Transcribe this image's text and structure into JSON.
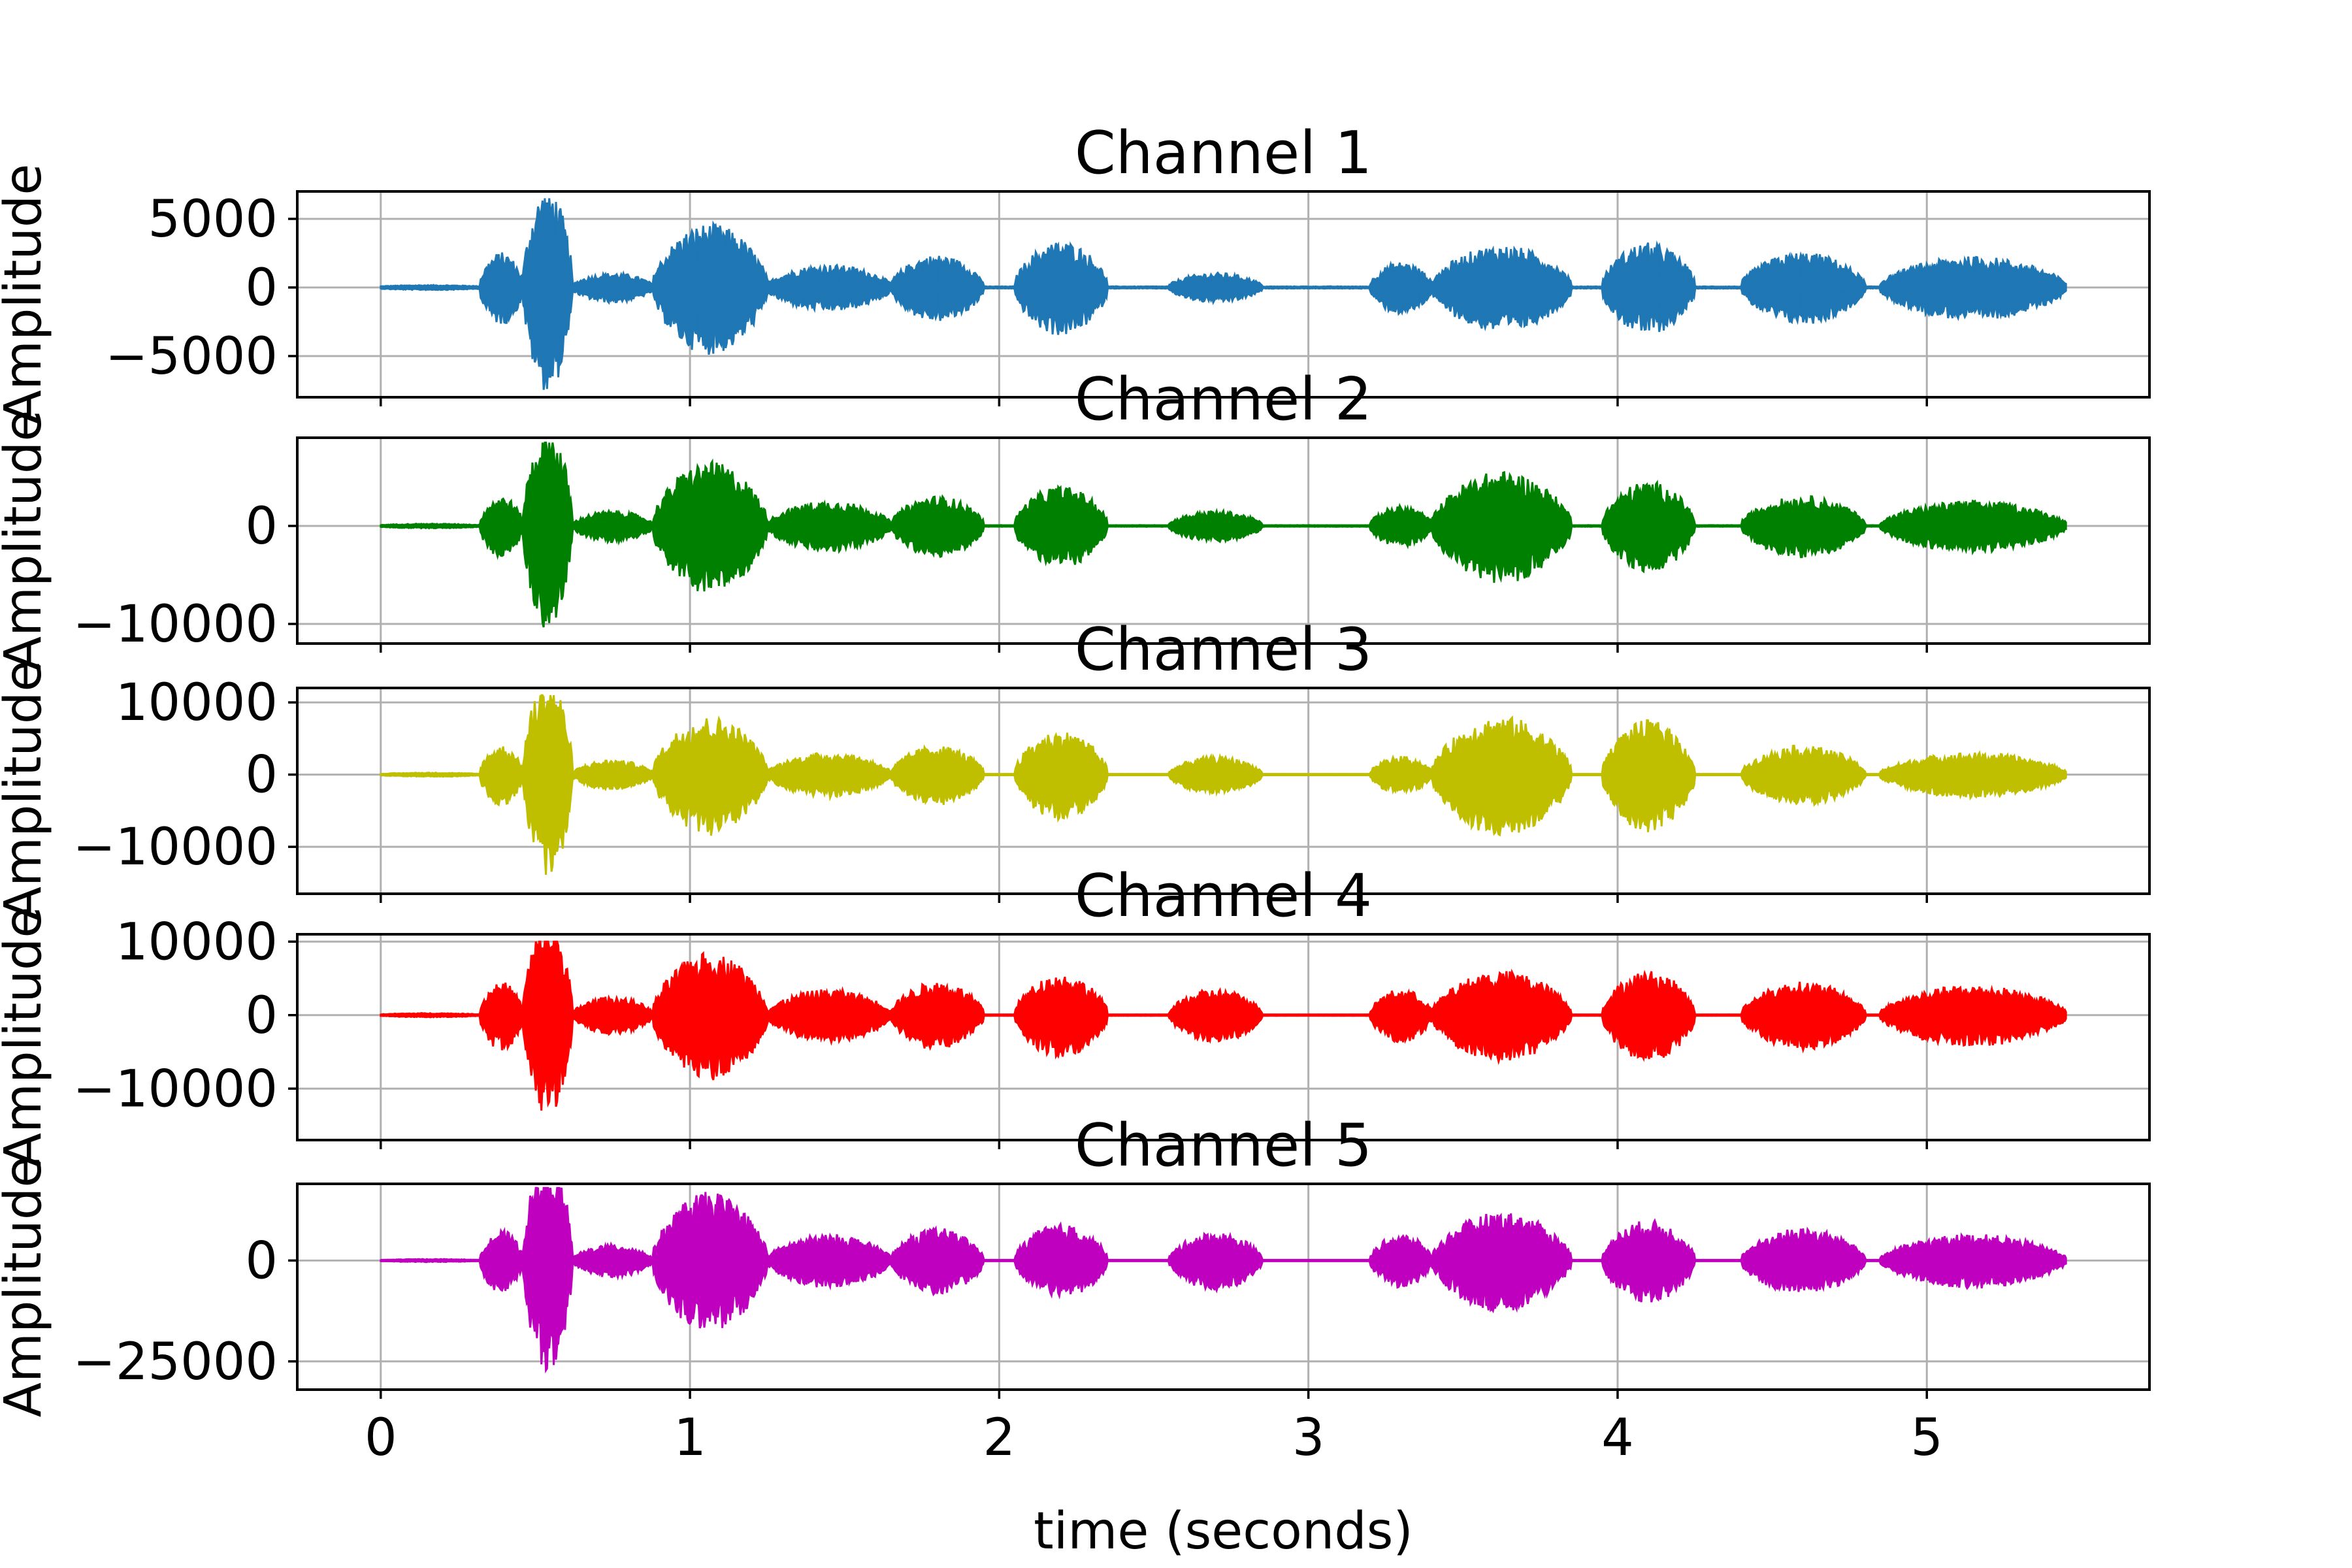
{
  "chart_data": {
    "type": "line",
    "layout": "5 stacked subplots sharing the x axis",
    "xlabel": "time (seconds)",
    "ylabel": "Amplitude",
    "xlim": [
      -0.27,
      5.72
    ],
    "xticks": [
      0,
      1,
      2,
      3,
      4,
      5
    ],
    "xtick_labels": [
      "0",
      "1",
      "2",
      "3",
      "4",
      "5"
    ],
    "grid": true,
    "duration_seconds": 5.45,
    "panels": [
      {
        "title": "Channel 1",
        "color": "#1f77b4",
        "ylim": [
          -8000,
          7000
        ],
        "yticks": [
          5000,
          0,
          -5000
        ],
        "ytick_labels": [
          "5000",
          "0",
          "−5000"
        ],
        "min": -7500,
        "max": 6500,
        "envelope_segments": [
          {
            "t": [
              0.0,
              0.32
            ],
            "peak": 100
          },
          {
            "t": [
              0.32,
              0.46
            ],
            "peak": 2500
          },
          {
            "t": [
              0.46,
              0.62
            ],
            "peak": 7200
          },
          {
            "t": [
              0.62,
              0.88
            ],
            "peak": 1000
          },
          {
            "t": [
              0.88,
              1.25
            ],
            "peak": 4600
          },
          {
            "t": [
              1.25,
              1.65
            ],
            "peak": 1600
          },
          {
            "t": [
              1.65,
              1.95
            ],
            "peak": 2300
          },
          {
            "t": [
              2.05,
              2.35
            ],
            "peak": 3300
          },
          {
            "t": [
              2.55,
              2.85
            ],
            "peak": 1000
          },
          {
            "t": [
              3.2,
              3.4
            ],
            "peak": 1800
          },
          {
            "t": [
              3.4,
              3.85
            ],
            "peak": 3000
          },
          {
            "t": [
              3.95,
              4.25
            ],
            "peak": 3200
          },
          {
            "t": [
              4.4,
              4.8
            ],
            "peak": 2500
          },
          {
            "t": [
              4.85,
              5.45
            ],
            "peak": 2200
          }
        ]
      },
      {
        "title": "Channel 2",
        "color": "#008000",
        "ylim": [
          -12000,
          9000
        ],
        "yticks": [
          0,
          -10000
        ],
        "ytick_labels": [
          "0",
          "−10000"
        ],
        "min": -11000,
        "max": 8500,
        "envelope_segments": [
          {
            "t": [
              0.0,
              0.32
            ],
            "peak": 150
          },
          {
            "t": [
              0.32,
              0.46
            ],
            "peak": 3000
          },
          {
            "t": [
              0.46,
              0.62
            ],
            "peak": 10000
          },
          {
            "t": [
              0.62,
              0.88
            ],
            "peak": 1500
          },
          {
            "t": [
              0.88,
              1.25
            ],
            "peak": 6500
          },
          {
            "t": [
              1.25,
              1.65
            ],
            "peak": 2500
          },
          {
            "t": [
              1.65,
              1.95
            ],
            "peak": 3000
          },
          {
            "t": [
              2.05,
              2.35
            ],
            "peak": 4000
          },
          {
            "t": [
              2.55,
              2.85
            ],
            "peak": 1500
          },
          {
            "t": [
              3.2,
              3.4
            ],
            "peak": 2000
          },
          {
            "t": [
              3.4,
              3.85
            ],
            "peak": 5500
          },
          {
            "t": [
              3.95,
              4.25
            ],
            "peak": 4500
          },
          {
            "t": [
              4.4,
              4.8
            ],
            "peak": 3000
          },
          {
            "t": [
              4.85,
              5.45
            ],
            "peak": 2500
          }
        ]
      },
      {
        "title": "Channel 3",
        "color": "#bfbf00",
        "ylim": [
          -16500,
          12000
        ],
        "yticks": [
          10000,
          0,
          -10000
        ],
        "ytick_labels": [
          "10000",
          "0",
          "−10000"
        ],
        "min": -15500,
        "max": 11000,
        "envelope_segments": [
          {
            "t": [
              0.0,
              0.32
            ],
            "peak": 200
          },
          {
            "t": [
              0.32,
              0.46
            ],
            "peak": 4000
          },
          {
            "t": [
              0.46,
              0.62
            ],
            "peak": 13500
          },
          {
            "t": [
              0.62,
              0.88
            ],
            "peak": 2000
          },
          {
            "t": [
              0.88,
              1.25
            ],
            "peak": 8000
          },
          {
            "t": [
              1.25,
              1.65
            ],
            "peak": 3000
          },
          {
            "t": [
              1.65,
              1.95
            ],
            "peak": 4000
          },
          {
            "t": [
              2.05,
              2.35
            ],
            "peak": 6000
          },
          {
            "t": [
              2.55,
              2.85
            ],
            "peak": 2500
          },
          {
            "t": [
              3.2,
              3.4
            ],
            "peak": 2500
          },
          {
            "t": [
              3.4,
              3.85
            ],
            "peak": 8000
          },
          {
            "t": [
              3.95,
              4.25
            ],
            "peak": 7500
          },
          {
            "t": [
              4.4,
              4.8
            ],
            "peak": 4000
          },
          {
            "t": [
              4.85,
              5.45
            ],
            "peak": 3000
          }
        ]
      },
      {
        "title": "Channel 4",
        "color": "#ff0000",
        "ylim": [
          -17000,
          11000
        ],
        "yticks": [
          10000,
          0,
          -10000
        ],
        "ytick_labels": [
          "10000",
          "0",
          "−10000"
        ],
        "min": -16000,
        "max": 10000,
        "envelope_segments": [
          {
            "t": [
              0.0,
              0.32
            ],
            "peak": 200
          },
          {
            "t": [
              0.32,
              0.46
            ],
            "peak": 4500
          },
          {
            "t": [
              0.46,
              0.62
            ],
            "peak": 13000
          },
          {
            "t": [
              0.62,
              0.88
            ],
            "peak": 2500
          },
          {
            "t": [
              0.88,
              1.25
            ],
            "peak": 8500
          },
          {
            "t": [
              1.25,
              1.65
            ],
            "peak": 3500
          },
          {
            "t": [
              1.65,
              1.95
            ],
            "peak": 4500
          },
          {
            "t": [
              2.05,
              2.35
            ],
            "peak": 5500
          },
          {
            "t": [
              2.55,
              2.85
            ],
            "peak": 3500
          },
          {
            "t": [
              3.2,
              3.4
            ],
            "peak": 3500
          },
          {
            "t": [
              3.4,
              3.85
            ],
            "peak": 6000
          },
          {
            "t": [
              3.95,
              4.25
            ],
            "peak": 6000
          },
          {
            "t": [
              4.4,
              4.8
            ],
            "peak": 4500
          },
          {
            "t": [
              4.85,
              5.45
            ],
            "peak": 4000
          }
        ]
      },
      {
        "title": "Channel 5",
        "color": "#bf00bf",
        "ylim": [
          -32000,
          19000
        ],
        "yticks": [
          0,
          -25000
        ],
        "ytick_labels": [
          "0",
          "−25000"
        ],
        "min": -30000,
        "max": 18000,
        "envelope_segments": [
          {
            "t": [
              0.0,
              0.32
            ],
            "peak": 300
          },
          {
            "t": [
              0.32,
              0.46
            ],
            "peak": 7500
          },
          {
            "t": [
              0.46,
              0.62
            ],
            "peak": 26000
          },
          {
            "t": [
              0.62,
              0.88
            ],
            "peak": 4000
          },
          {
            "t": [
              0.88,
              1.25
            ],
            "peak": 17000
          },
          {
            "t": [
              1.25,
              1.65
            ],
            "peak": 6500
          },
          {
            "t": [
              1.65,
              1.95
            ],
            "peak": 8000
          },
          {
            "t": [
              2.05,
              2.35
            ],
            "peak": 9000
          },
          {
            "t": [
              2.55,
              2.85
            ],
            "peak": 7000
          },
          {
            "t": [
              3.2,
              3.4
            ],
            "peak": 6500
          },
          {
            "t": [
              3.4,
              3.85
            ],
            "peak": 12000
          },
          {
            "t": [
              3.95,
              4.25
            ],
            "peak": 10000
          },
          {
            "t": [
              4.4,
              4.8
            ],
            "peak": 8000
          },
          {
            "t": [
              4.85,
              5.45
            ],
            "peak": 6500
          }
        ]
      }
    ]
  }
}
